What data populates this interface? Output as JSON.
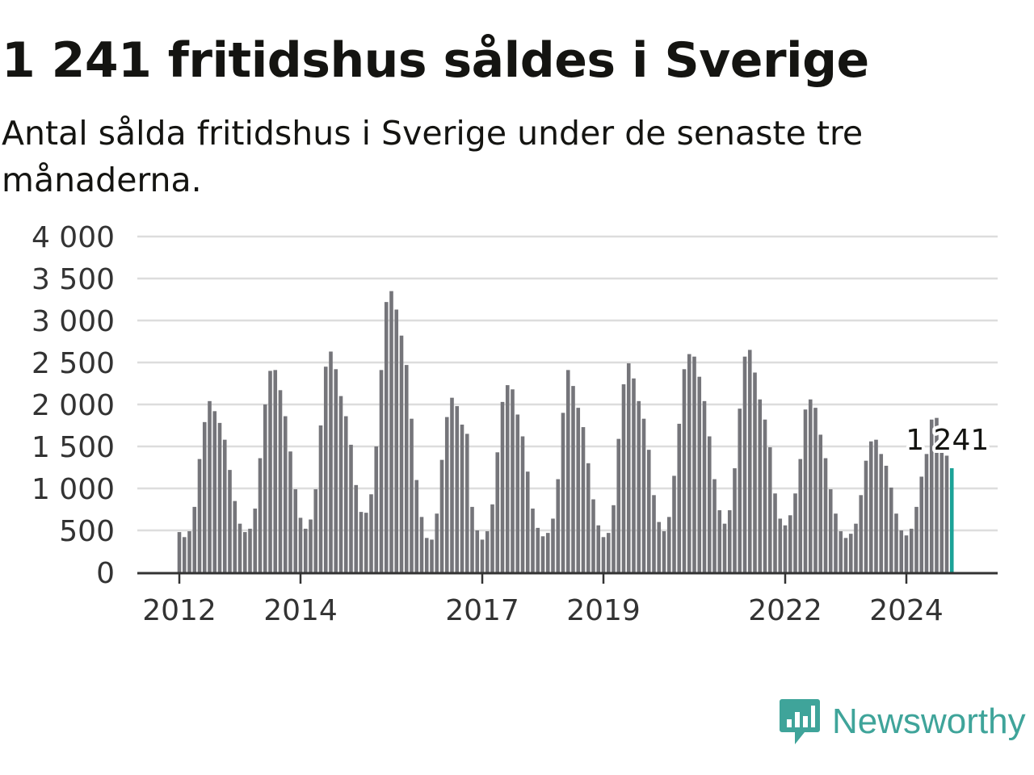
{
  "title": "1 241 fritidshus såldes i Sverige",
  "subtitle": "Antal sålda fritidshus i Sverige under de senaste tre månaderna.",
  "brand": {
    "name": "Newsworthy",
    "icon": "newsworthy-chart-bubble-icon",
    "color": "#3fa49a"
  },
  "colors": {
    "bar": "#75757a",
    "highlight": "#1ba297",
    "grid": "#dddddd",
    "axis": "#333333"
  },
  "chart_data": {
    "type": "bar",
    "title": "1 241 fritidshus såldes i Sverige",
    "subtitle": "Antal sålda fritidshus i Sverige under de senaste tre månaderna.",
    "start": "2012-01",
    "frequency": "monthly",
    "ylim": [
      0,
      4000
    ],
    "yticks": [
      0,
      500,
      1000,
      1500,
      2000,
      2500,
      3000,
      3500,
      4000
    ],
    "ytick_labels": [
      "0",
      "500",
      "1 000",
      "1 500",
      "2 000",
      "2 500",
      "3 000",
      "3 500",
      "4 000"
    ],
    "xtick_labels": [
      {
        "label": "2012",
        "month": "2012-01"
      },
      {
        "label": "2014",
        "month": "2014-01"
      },
      {
        "label": "2017",
        "month": "2017-01"
      },
      {
        "label": "2019",
        "month": "2019-01"
      },
      {
        "label": "2022",
        "month": "2022-01"
      },
      {
        "label": "2024",
        "month": "2024-01"
      }
    ],
    "grid": true,
    "values": [
      480,
      420,
      490,
      780,
      1350,
      1790,
      2040,
      1920,
      1780,
      1580,
      1220,
      850,
      580,
      480,
      520,
      760,
      1360,
      2000,
      2400,
      2410,
      2170,
      1860,
      1440,
      990,
      650,
      520,
      630,
      990,
      1750,
      2450,
      2630,
      2420,
      2100,
      1860,
      1520,
      1040,
      720,
      710,
      930,
      1500,
      2410,
      3220,
      3350,
      3130,
      2820,
      2470,
      1830,
      1100,
      660,
      410,
      390,
      700,
      1340,
      1850,
      2080,
      1980,
      1760,
      1650,
      780,
      500,
      390,
      490,
      810,
      1430,
      2030,
      2230,
      2180,
      1880,
      1620,
      1200,
      760,
      530,
      430,
      470,
      640,
      1110,
      1900,
      2410,
      2220,
      1960,
      1730,
      1300,
      870,
      560,
      420,
      470,
      800,
      1590,
      2240,
      2490,
      2310,
      2040,
      1830,
      1460,
      920,
      600,
      490,
      660,
      1150,
      1770,
      2420,
      2600,
      2570,
      2330,
      2040,
      1620,
      1110,
      740,
      580,
      740,
      1240,
      1950,
      2570,
      2650,
      2380,
      2060,
      1820,
      1490,
      940,
      640,
      560,
      680,
      940,
      1350,
      1940,
      2060,
      1960,
      1640,
      1360,
      990,
      700,
      490,
      410,
      460,
      580,
      920,
      1330,
      1560,
      1580,
      1410,
      1270,
      1010,
      700,
      500,
      440,
      520,
      780,
      1140,
      1410,
      1820,
      1840,
      1500,
      1390,
      1241
    ],
    "highlight_last": true,
    "last_label": "1 241"
  }
}
